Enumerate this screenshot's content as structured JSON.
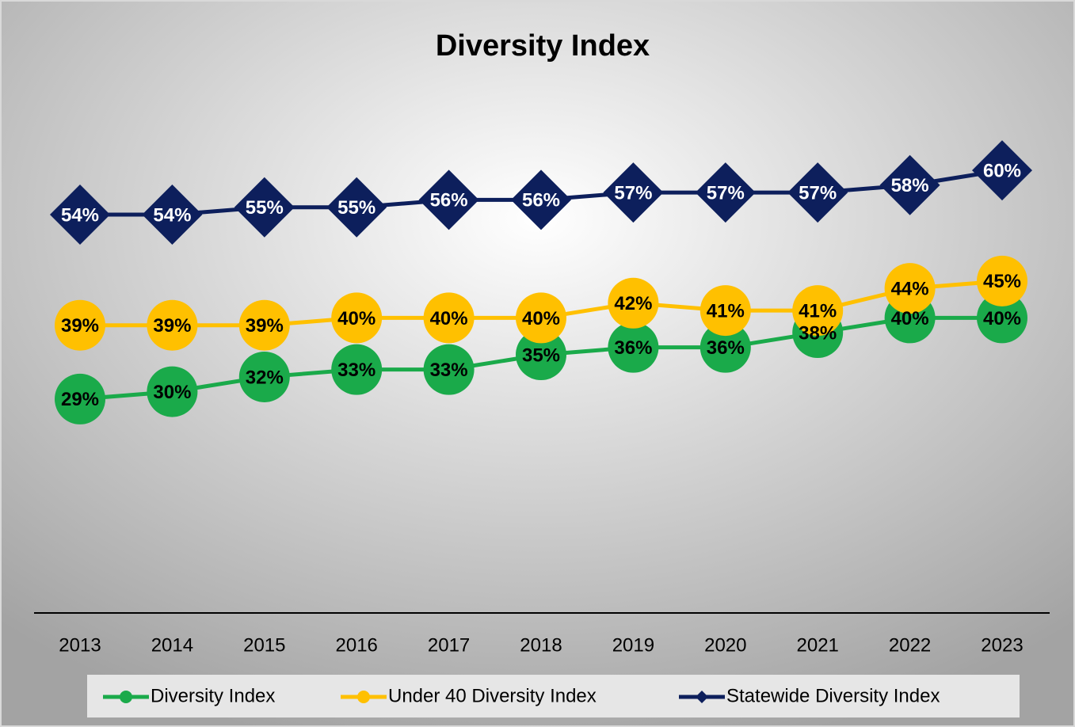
{
  "chart_data": {
    "type": "line",
    "title": "Diversity Index",
    "categories": [
      "2013",
      "2014",
      "2015",
      "2016",
      "2017",
      "2018",
      "2019",
      "2020",
      "2021",
      "2022",
      "2023"
    ],
    "ylim": [
      0,
      70
    ],
    "series": [
      {
        "name": "Diversity Index",
        "color": "#1aaa4a",
        "marker": "circle",
        "values": [
          29,
          30,
          32,
          33,
          33,
          35,
          36,
          36,
          38,
          40,
          40
        ],
        "value_labels": [
          "29%",
          "30%",
          "32%",
          "33%",
          "33%",
          "35%",
          "36%",
          "36%",
          "38%",
          "40%",
          "40%"
        ]
      },
      {
        "name": "Under 40 Diversity Index",
        "color": "#ffc000",
        "marker": "circle",
        "values": [
          39,
          39,
          39,
          40,
          40,
          40,
          42,
          41,
          41,
          44,
          45
        ],
        "value_labels": [
          "39%",
          "39%",
          "39%",
          "40%",
          "40%",
          "40%",
          "42%",
          "41%",
          "41%",
          "44%",
          "45%"
        ]
      },
      {
        "name": "Statewide Diversity Index",
        "color": "#0d1f5c",
        "marker": "diamond",
        "label_color": "#ffffff",
        "values": [
          54,
          54,
          55,
          55,
          56,
          56,
          57,
          57,
          57,
          58,
          60
        ],
        "value_labels": [
          "54%",
          "54%",
          "55%",
          "55%",
          "56%",
          "56%",
          "57%",
          "57%",
          "57%",
          "58%",
          "60%"
        ]
      }
    ]
  }
}
